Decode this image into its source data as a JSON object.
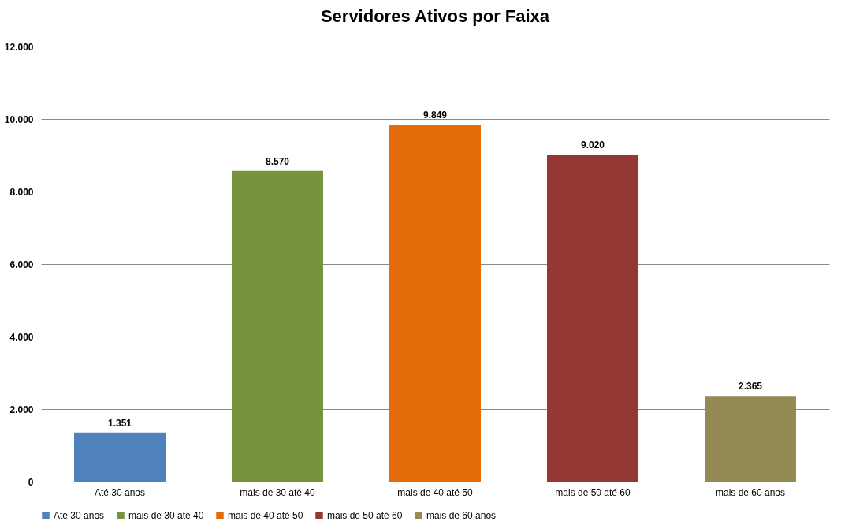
{
  "chart_data": {
    "type": "bar",
    "title": "Servidores Ativos por Faixa",
    "categories": [
      "Até 30 anos",
      "mais de 30 até 40",
      "mais de 40 até 50",
      "mais de 50 até 60",
      "mais de 60 anos"
    ],
    "series": [
      {
        "name": "Até 30 anos",
        "color": "#4f81bd",
        "values": [
          1351,
          null,
          null,
          null,
          null
        ],
        "value_labels": [
          "1.351",
          null,
          null,
          null,
          null
        ]
      },
      {
        "name": "mais de 30 até 40",
        "color": "#77933c",
        "values": [
          null,
          8570,
          null,
          null,
          null
        ],
        "value_labels": [
          null,
          "8.570",
          null,
          null,
          null
        ]
      },
      {
        "name": "mais de 40 até 50",
        "color": "#e36c09",
        "values": [
          null,
          null,
          9849,
          null,
          null
        ],
        "value_labels": [
          null,
          null,
          "9.849",
          null,
          null
        ]
      },
      {
        "name": "mais de 50 até 60",
        "color": "#953735",
        "values": [
          null,
          null,
          null,
          9020,
          null
        ],
        "value_labels": [
          null,
          null,
          null,
          "9.020",
          null
        ]
      },
      {
        "name": "mais de 60 anos",
        "color": "#948a54",
        "values": [
          null,
          null,
          null,
          null,
          2365
        ],
        "value_labels": [
          null,
          null,
          null,
          null,
          "2.365"
        ]
      }
    ],
    "ylim": [
      0,
      12000
    ],
    "yticks": [
      {
        "value": 0,
        "label": "0"
      },
      {
        "value": 2000,
        "label": "2.000"
      },
      {
        "value": 4000,
        "label": "4.000"
      },
      {
        "value": 6000,
        "label": "6.000"
      },
      {
        "value": 8000,
        "label": "8.000"
      },
      {
        "value": 10000,
        "label": "10.000"
      },
      {
        "value": 12000,
        "label": "12.000"
      }
    ],
    "grid": "y",
    "legend": "bottom"
  }
}
